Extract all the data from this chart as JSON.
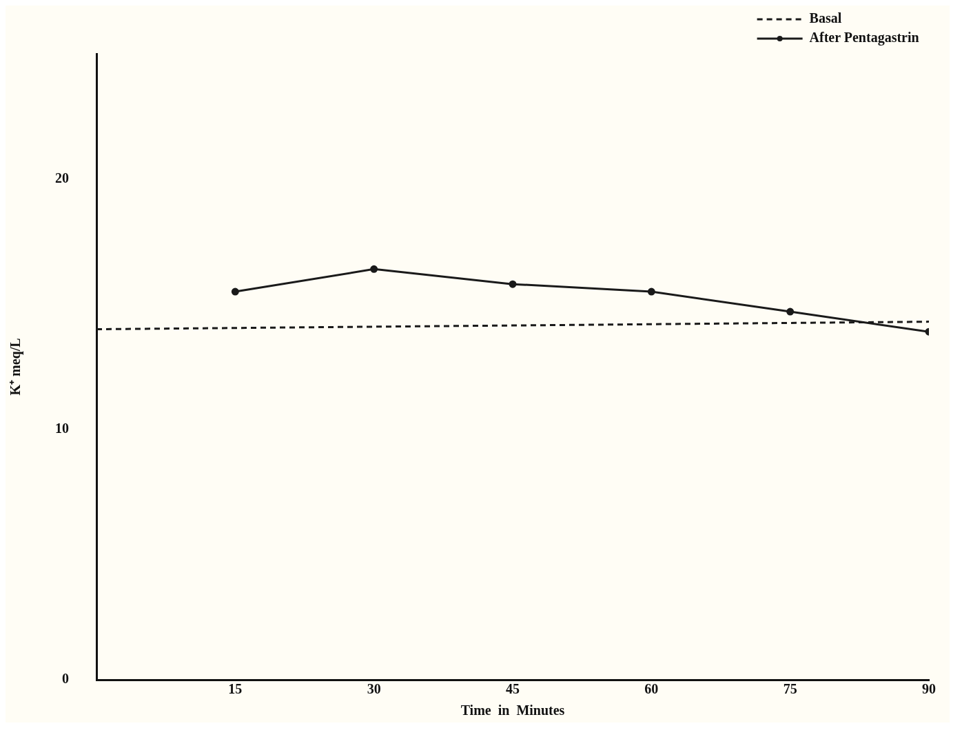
{
  "chart_data": {
    "type": "line",
    "xlabel": "Time  in  Minutes",
    "ylabel": "K⁺ meq/L",
    "xlim": [
      0,
      90
    ],
    "xticks": [
      15,
      30,
      45,
      60,
      75,
      90
    ],
    "ylim": [
      0,
      25
    ],
    "yticks": [
      0,
      10,
      20
    ],
    "grid": false,
    "legend": "top right",
    "series": [
      {
        "name": "Basal",
        "color": "#1a1a1a",
        "x": [
          0,
          90
        ],
        "values": [
          14.0,
          14.3
        ],
        "line_style": "dashed",
        "marker": "none"
      },
      {
        "name": "After Pentagastrin",
        "color": "#1a1a1a",
        "x": [
          15,
          30,
          45,
          60,
          75,
          90
        ],
        "values": [
          15.5,
          16.4,
          15.8,
          15.5,
          14.7,
          13.9
        ],
        "line_style": "solid",
        "marker": "circle"
      }
    ]
  }
}
